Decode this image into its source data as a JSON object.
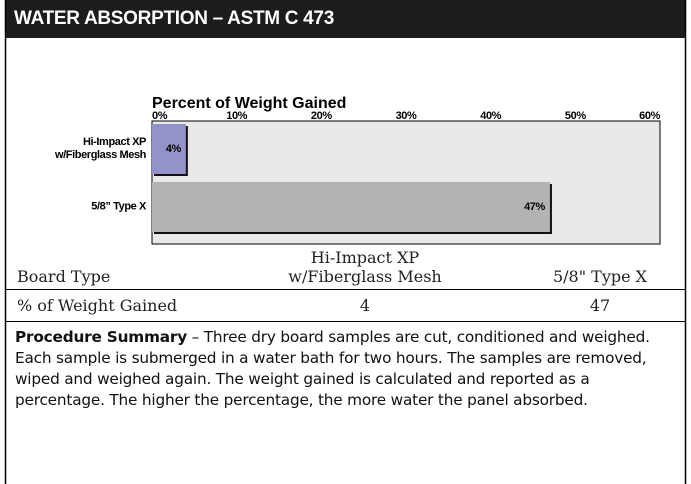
{
  "header": {
    "title": "WATER ABSORPTION – ASTM C 473"
  },
  "chart_data": {
    "type": "hbar",
    "title": "Percent of Weight Gained",
    "categories": [
      "Hi-Impact XP\nw/Fiberglass Mesh",
      "5/8” Type X"
    ],
    "values": [
      4,
      47
    ],
    "value_labels": [
      "4%",
      "47%"
    ],
    "colors": [
      "#9393c9",
      "#b3b3b3"
    ],
    "xlim": [
      0,
      60
    ],
    "xticks": [
      {
        "value": 0,
        "label": "0%"
      },
      {
        "value": 10,
        "label": "10%"
      },
      {
        "value": 20,
        "label": "20%"
      },
      {
        "value": 30,
        "label": "30%"
      },
      {
        "value": 40,
        "label": "40%"
      },
      {
        "value": 50,
        "label": "50%"
      },
      {
        "value": 60,
        "label": "60%"
      }
    ]
  },
  "table": {
    "header": [
      "Board Type",
      "Hi-Impact XP\nw/Fiberglass Mesh",
      "5/8\" Type X"
    ],
    "rows": [
      [
        "% of Weight Gained",
        "4",
        "47"
      ]
    ]
  },
  "procedure": {
    "heading": "Procedure Summary",
    "text": " – Three dry board samples are cut, conditioned and weighed. Each sample is submerged in a water bath for two hours. The samples are removed, wiped and weighed again. The weight gained is calculated and reported as a percentage. The higher the percentage, the more water the panel absorbed."
  }
}
